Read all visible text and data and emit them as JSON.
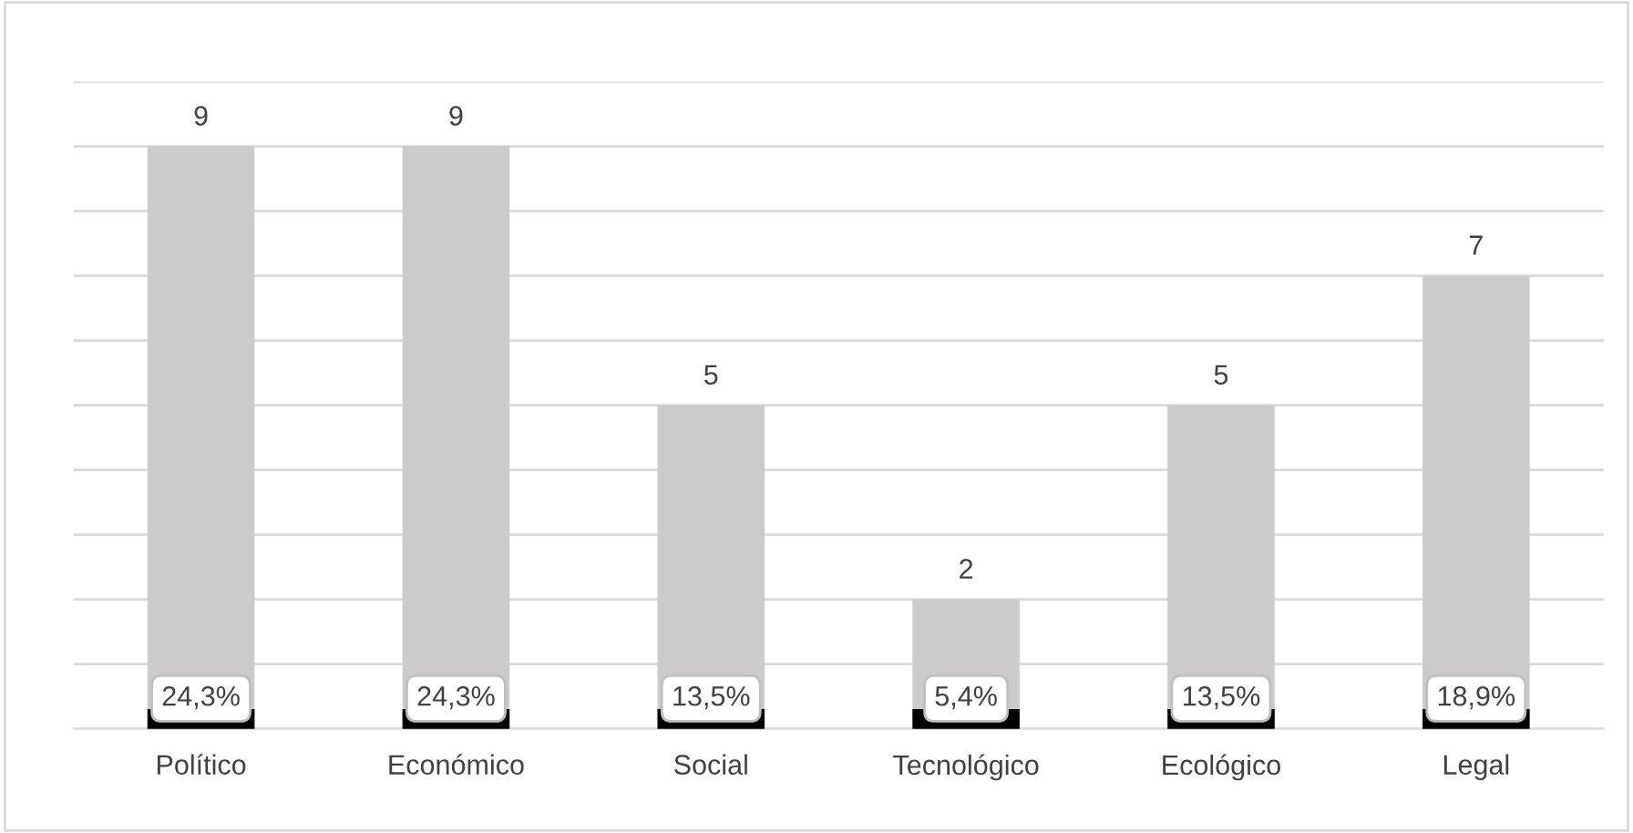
{
  "chart_data": {
    "type": "bar",
    "categories": [
      "Político",
      "Económico",
      "Social",
      "Tecnológico",
      "Ecológico",
      "Legal"
    ],
    "values": [
      9,
      9,
      5,
      2,
      5,
      7
    ],
    "color": "#cccaca",
    "data_labels": true,
    "ylim": [
      0,
      10
    ],
    "yticks": [
      {
        "value": 0,
        "label": null
      },
      {
        "value": 1,
        "label": null
      },
      {
        "value": 2,
        "label": null
      },
      {
        "value": 3,
        "label": null
      },
      {
        "value": 4,
        "label": null
      },
      {
        "value": 5,
        "label": null
      },
      {
        "value": 6,
        "label": null
      },
      {
        "value": 7,
        "label": null
      },
      {
        "value": 8,
        "label": null
      },
      {
        "value": 9,
        "label": null
      },
      {
        "value": 10,
        "label": null
      }
    ],
    "grid": "y",
    "tick_labels": "x",
    "annotations": [
      {
        "text": "24,3%",
        "x": "Político",
        "y": 0
      },
      {
        "text": "24,3%",
        "x": "Económico",
        "y": 0
      },
      {
        "text": "13,5%",
        "x": "Social",
        "y": 0
      },
      {
        "text": "5,4%",
        "x": "Tecnológico",
        "y": 0
      },
      {
        "text": "13,5%",
        "x": "Ecológico",
        "y": 0
      },
      {
        "text": "18,9%",
        "x": "Legal",
        "y": 0
      }
    ]
  }
}
